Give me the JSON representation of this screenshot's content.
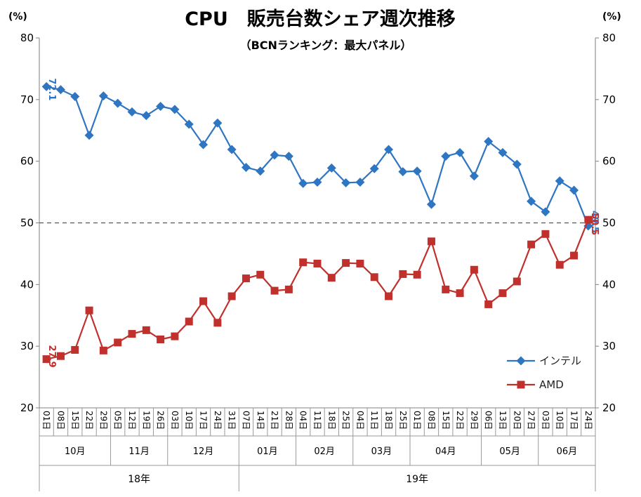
{
  "chart_data": {
    "type": "line",
    "title": "CPU　販売台数シェア週次推移",
    "subtitle": "（BCNランキング：最大パネル）",
    "y_unit_left": "(%)",
    "y_unit_right": "(%)",
    "ylim": [
      20,
      80
    ],
    "yticks": [
      20,
      30,
      40,
      50,
      60,
      70,
      80
    ],
    "reference_line": 50,
    "x": [
      "01日",
      "08日",
      "15日",
      "22日",
      "29日",
      "05日",
      "12日",
      "19日",
      "26日",
      "03日",
      "10日",
      "17日",
      "24日",
      "31日",
      "07日",
      "14日",
      "21日",
      "28日",
      "04日",
      "11日",
      "18日",
      "25日",
      "04日",
      "11日",
      "18日",
      "25日",
      "01日",
      "08日",
      "15日",
      "22日",
      "29日",
      "06日",
      "13日",
      "20日",
      "27日",
      "03日",
      "10日",
      "17日",
      "24日"
    ],
    "month_groups": [
      {
        "label": "10月",
        "count": 5
      },
      {
        "label": "11月",
        "count": 4
      },
      {
        "label": "12月",
        "count": 5
      },
      {
        "label": "01月",
        "count": 4
      },
      {
        "label": "02月",
        "count": 4
      },
      {
        "label": "03月",
        "count": 4
      },
      {
        "label": "04月",
        "count": 5
      },
      {
        "label": "05月",
        "count": 4
      },
      {
        "label": "06月",
        "count": 4
      }
    ],
    "year_groups": [
      {
        "label": "18年",
        "count": 14
      },
      {
        "label": "19年",
        "count": 25
      }
    ],
    "series": [
      {
        "name": "インテル",
        "color": "#2e75c2",
        "marker": "diamond",
        "values": [
          72.1,
          71.6,
          70.5,
          64.2,
          70.6,
          69.4,
          68.0,
          67.4,
          68.9,
          68.4,
          66.0,
          62.7,
          66.2,
          61.9,
          59.0,
          58.4,
          61.0,
          60.8,
          56.4,
          56.6,
          58.9,
          56.5,
          56.6,
          58.8,
          61.9,
          58.3,
          58.4,
          53.0,
          60.8,
          61.4,
          57.6,
          63.2,
          61.4,
          59.5,
          53.5,
          51.8,
          56.8,
          55.3,
          49.5
        ],
        "labels": [
          {
            "index": 0,
            "text": "72.1"
          },
          {
            "index": 38,
            "text": "49.5"
          }
        ]
      },
      {
        "name": "AMD",
        "color": "#c0302c",
        "marker": "square",
        "values": [
          27.9,
          28.4,
          29.4,
          35.8,
          29.3,
          30.6,
          32.0,
          32.6,
          31.1,
          31.6,
          34.0,
          37.3,
          33.8,
          38.1,
          41.0,
          41.6,
          39.0,
          39.2,
          43.6,
          43.4,
          41.1,
          43.5,
          43.4,
          41.2,
          38.1,
          41.7,
          41.6,
          47.0,
          39.2,
          38.6,
          42.4,
          36.8,
          38.6,
          40.5,
          46.5,
          48.2,
          43.2,
          44.7,
          50.5
        ],
        "labels": [
          {
            "index": 0,
            "text": "27.9"
          },
          {
            "index": 38,
            "text": "50.5"
          }
        ]
      }
    ],
    "legend_position": "lower-right",
    "grid": false
  }
}
